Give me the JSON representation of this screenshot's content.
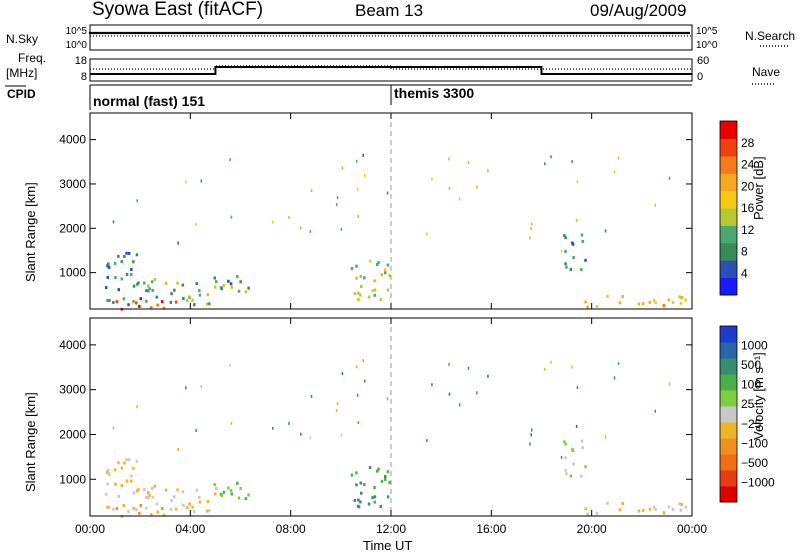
{
  "header": {
    "station": "Syowa East (fitACF)",
    "beam": "Beam 13",
    "date": "09/Aug/2009"
  },
  "top_panels": {
    "nsky_label": "N.Sky",
    "nsearch_label": "N.Search",
    "nsky_ticks": [
      "10^5",
      "10^0"
    ],
    "nsearch_ticks": [
      "10^5",
      "10^0"
    ],
    "freq_label_line1": "Freq.",
    "freq_label_line2": "[MHz]",
    "freq_ticks": [
      "18",
      "8"
    ],
    "nave_label": "Nave",
    "nave_ticks": [
      "60",
      "0"
    ],
    "cpid_label": "CPID",
    "cpid_segments": [
      "normal (fast) 151",
      "themis 3300"
    ]
  },
  "x_axis": {
    "label": "Time UT",
    "ticks": [
      "00:00",
      "04:00",
      "08:00",
      "12:00",
      "16:00",
      "20:00",
      "00:00"
    ]
  },
  "y_axis": {
    "label": "Slant Range [km]",
    "ticks": [
      "4000",
      "3000",
      "2000",
      "1000"
    ]
  },
  "power_scale": {
    "label": "Power [dB]",
    "ticks": [
      "28",
      "24",
      "20",
      "16",
      "12",
      "8",
      "4"
    ],
    "colors": [
      "#1a1aff",
      "#2b4fb5",
      "#3a8a58",
      "#4aa870",
      "#b8c830",
      "#f5c814",
      "#f5a820",
      "#f57a18",
      "#f04010",
      "#e60000"
    ]
  },
  "velocity_scale": {
    "label": "Velocity [m s⁻¹]",
    "ticks": [
      "1000",
      "500",
      "100",
      "25",
      "−25",
      "−100",
      "−500",
      "−1000"
    ],
    "colors": [
      "#1e3cc8",
      "#2864a8",
      "#3a8c6e",
      "#4ab04a",
      "#7cd040",
      "#c8c8c8",
      "#f0b428",
      "#f09020",
      "#f06e18",
      "#e63c14",
      "#dc0000"
    ]
  },
  "chart_data": {
    "type": "heatmap",
    "panels": [
      "Power",
      "Velocity"
    ],
    "x_range_hours": [
      0,
      24
    ],
    "y_range_km": [
      180,
      4600
    ],
    "echo_regions": [
      {
        "t": [
          0.5,
          2.0
        ],
        "range_km": [
          300,
          1500
        ],
        "power_db": 8,
        "velocity": -100
      },
      {
        "t": [
          1.0,
          3.5
        ],
        "range_km": [
          200,
          450
        ],
        "power_db": 28,
        "velocity": -500
      },
      {
        "t": [
          2.0,
          5.0
        ],
        "range_km": [
          300,
          900
        ],
        "power_db": 12,
        "velocity": -100
      },
      {
        "t": [
          4.5,
          6.3
        ],
        "range_km": [
          600,
          1000
        ],
        "power_db": 10,
        "velocity": 25
      },
      {
        "t": [
          10.2,
          11.9
        ],
        "range_km": [
          400,
          1300
        ],
        "power_db": 14,
        "velocity": 100
      },
      {
        "t": [
          18.8,
          19.8
        ],
        "range_km": [
          1100,
          1900
        ],
        "power_db": 8,
        "velocity": -25
      },
      {
        "t": [
          19.5,
          24.0
        ],
        "range_km": [
          250,
          500
        ],
        "power_db": 20,
        "velocity": -100
      }
    ],
    "mode_change_hours": 12.0
  }
}
